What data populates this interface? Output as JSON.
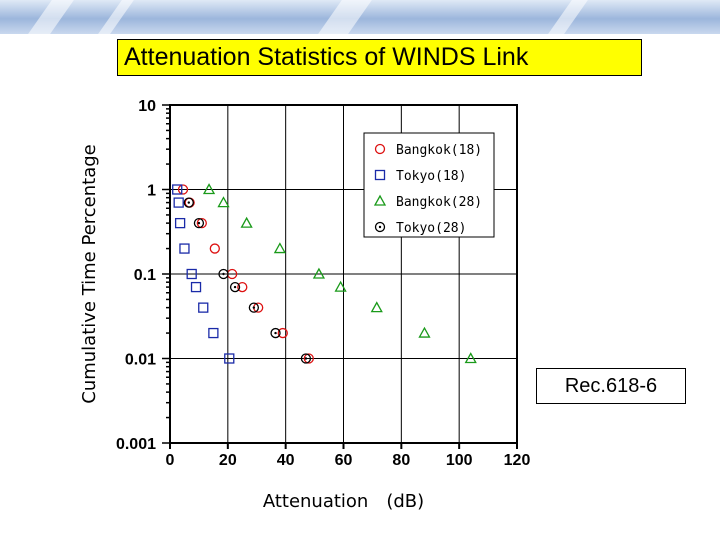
{
  "slide": {
    "title": "Attenuation Statistics of WINDS Link",
    "rec_label": "Rec.618-6"
  },
  "chart_data": {
    "type": "scatter",
    "title": "",
    "xlabel": "Attenuation　(dB)",
    "ylabel": "Cumulative Time Percentage",
    "xlim": [
      0,
      120
    ],
    "ylim": [
      0.001,
      10
    ],
    "y_scale": "log",
    "x_ticks": [
      0,
      20,
      40,
      60,
      80,
      100,
      120
    ],
    "x_tick_labels": [
      "0",
      "20",
      "40",
      "60",
      "80",
      "100",
      "120"
    ],
    "y_ticks": [
      10,
      1,
      0.1,
      0.01,
      0.001
    ],
    "y_tick_labels": [
      "10",
      "1",
      "0.1",
      "0.01",
      "0.001"
    ],
    "grid": true,
    "legend_position": "top-right",
    "colors": {
      "red": "#dd1111",
      "blue": "#1a2aa8",
      "green": "#1a9a1a",
      "black": "#000000"
    },
    "series": [
      {
        "name": "Bangkok(18)",
        "marker": "circle",
        "color": "#dd1111",
        "points": [
          {
            "x": 4.5,
            "y": 1.0
          },
          {
            "x": 6.8,
            "y": 0.7
          },
          {
            "x": 11,
            "y": 0.4
          },
          {
            "x": 15.5,
            "y": 0.2
          },
          {
            "x": 21.5,
            "y": 0.1
          },
          {
            "x": 25,
            "y": 0.07
          },
          {
            "x": 30.5,
            "y": 0.04
          },
          {
            "x": 39,
            "y": 0.02
          },
          {
            "x": 48,
            "y": 0.01
          }
        ]
      },
      {
        "name": "Tokyo(18)",
        "marker": "square",
        "color": "#1a2aa8",
        "points": [
          {
            "x": 2.5,
            "y": 1.0
          },
          {
            "x": 3.0,
            "y": 0.7
          },
          {
            "x": 3.5,
            "y": 0.4
          },
          {
            "x": 5.0,
            "y": 0.2
          },
          {
            "x": 7.5,
            "y": 0.1
          },
          {
            "x": 9.0,
            "y": 0.07
          },
          {
            "x": 11.5,
            "y": 0.04
          },
          {
            "x": 15,
            "y": 0.02
          },
          {
            "x": 20.5,
            "y": 0.01
          }
        ]
      },
      {
        "name": "Bangkok(28)",
        "marker": "triangle",
        "color": "#1a9a1a",
        "points": [
          {
            "x": 13.5,
            "y": 1.0
          },
          {
            "x": 18.5,
            "y": 0.7
          },
          {
            "x": 26.5,
            "y": 0.4
          },
          {
            "x": 38,
            "y": 0.2
          },
          {
            "x": 51.5,
            "y": 0.1
          },
          {
            "x": 59,
            "y": 0.07
          },
          {
            "x": 71.5,
            "y": 0.04
          },
          {
            "x": 88,
            "y": 0.02
          },
          {
            "x": 104,
            "y": 0.01
          }
        ]
      },
      {
        "name": "Tokyo(28)",
        "marker": "circle-dot",
        "color": "#000000",
        "points": [
          {
            "x": 6.5,
            "y": 0.7
          },
          {
            "x": 10.0,
            "y": 0.4
          },
          {
            "x": 18.5,
            "y": 0.1
          },
          {
            "x": 22.5,
            "y": 0.07
          },
          {
            "x": 29.0,
            "y": 0.04
          },
          {
            "x": 36.5,
            "y": 0.02
          },
          {
            "x": 47,
            "y": 0.01
          }
        ]
      }
    ]
  }
}
